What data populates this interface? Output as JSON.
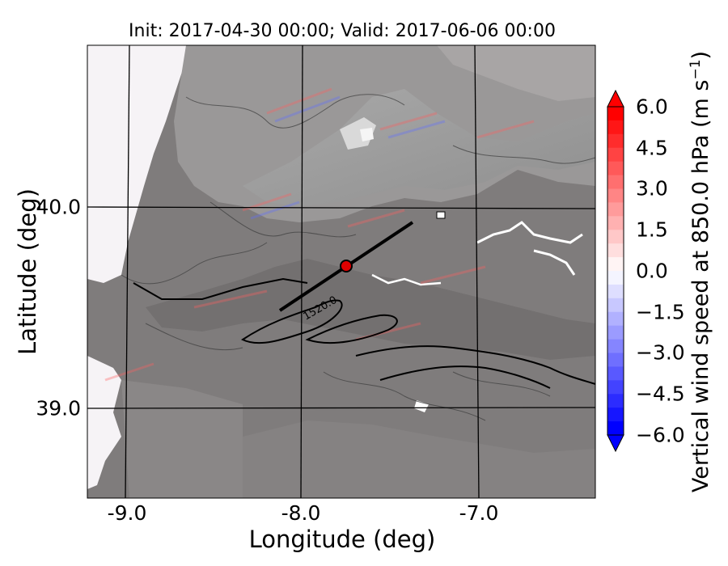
{
  "title": "Init: 2017-04-30 00:00; Valid: 2017-06-06 00:00",
  "map": {
    "xlabel": "Longitude (deg)",
    "ylabel": "Latitude (deg)",
    "xticks": [
      "-9.0",
      "-8.0",
      "-7.0"
    ],
    "yticks": [
      "40.0",
      "39.0"
    ],
    "contour_label": "1520.0",
    "marker_color": "#e00000",
    "cross_section_line": {
      "from": [
        -8.12,
        39.48
      ],
      "to": [
        -7.37,
        39.93
      ]
    }
  },
  "colorbar": {
    "label_prefix": "Vertical wind speed at 850.0 hPa (m s",
    "label_exp": "−1",
    "label_suffix": ")",
    "ticks": [
      "6.0",
      "4.5",
      "3.0",
      "1.5",
      "0.0",
      "−1.5",
      "−3.0",
      "−4.5",
      "−6.0"
    ],
    "range": [
      -6.0,
      6.0
    ],
    "high_color": "#ff0000",
    "low_color": "#0000ff"
  }
}
